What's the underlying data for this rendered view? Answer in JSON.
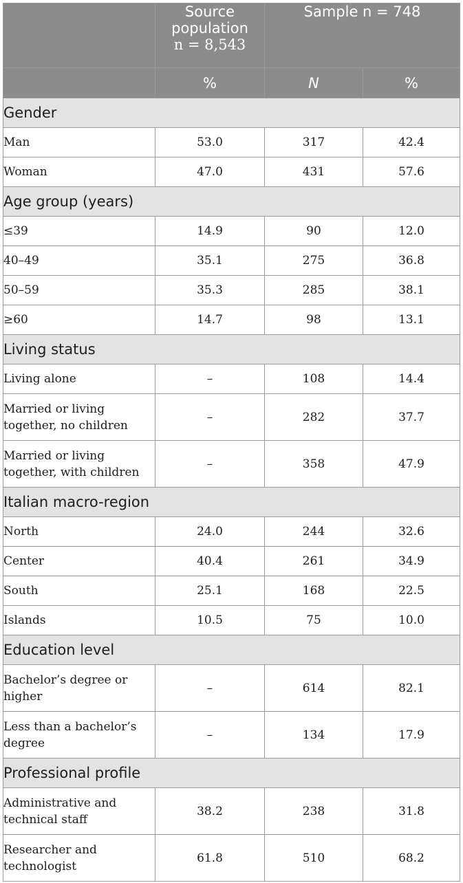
{
  "header": {
    "source_col": [
      "Source",
      "population",
      "n = 8,543"
    ],
    "sample_col": "Sample n = 748",
    "sub_source": "%",
    "sub_n": "N",
    "sub_pct": "%"
  },
  "groups": [
    {
      "title": "Gender",
      "rows": [
        {
          "label": "Man",
          "source_pct": "53.0",
          "n": "317",
          "pct": "42.4"
        },
        {
          "label": "Woman",
          "source_pct": "47.0",
          "n": "431",
          "pct": "57.6"
        }
      ]
    },
    {
      "title": "Age group (years)",
      "rows": [
        {
          "label": "≤39",
          "source_pct": "14.9",
          "n": "90",
          "pct": "12.0"
        },
        {
          "label": "40–49",
          "source_pct": "35.1",
          "n": "275",
          "pct": "36.8"
        },
        {
          "label": "50–59",
          "source_pct": "35.3",
          "n": "285",
          "pct": "38.1"
        },
        {
          "label": "≥60",
          "source_pct": "14.7",
          "n": "98",
          "pct": "13.1"
        }
      ]
    },
    {
      "title": "Living status",
      "rows": [
        {
          "label": "Living alone",
          "source_pct": "–",
          "n": "108",
          "pct": "14.4"
        },
        {
          "label": "Married or living together, no children",
          "source_pct": "–",
          "n": "282",
          "pct": "37.7"
        },
        {
          "label": "Married or living together, with children",
          "source_pct": "–",
          "n": "358",
          "pct": "47.9"
        }
      ]
    },
    {
      "title": "Italian macro-region",
      "rows": [
        {
          "label": "North",
          "source_pct": "24.0",
          "n": "244",
          "pct": "32.6"
        },
        {
          "label": "Center",
          "source_pct": "40.4",
          "n": "261",
          "pct": "34.9"
        },
        {
          "label": "South",
          "source_pct": "25.1",
          "n": "168",
          "pct": "22.5"
        },
        {
          "label": "Islands",
          "source_pct": "10.5",
          "n": "75",
          "pct": "10.0"
        }
      ]
    },
    {
      "title": "Education level",
      "rows": [
        {
          "label": "Bachelor’s degree or higher",
          "source_pct": "–",
          "n": "614",
          "pct": "82.1"
        },
        {
          "label": "Less than a bachelor’s degree",
          "source_pct": "–",
          "n": "134",
          "pct": "17.9"
        }
      ]
    },
    {
      "title": "Professional profile",
      "rows": [
        {
          "label": "Administrative and technical staff",
          "source_pct": "38.2",
          "n": "238",
          "pct": "31.8"
        },
        {
          "label": "Researcher and technologist",
          "source_pct": "61.8",
          "n": "510",
          "pct": "68.2"
        }
      ]
    }
  ]
}
